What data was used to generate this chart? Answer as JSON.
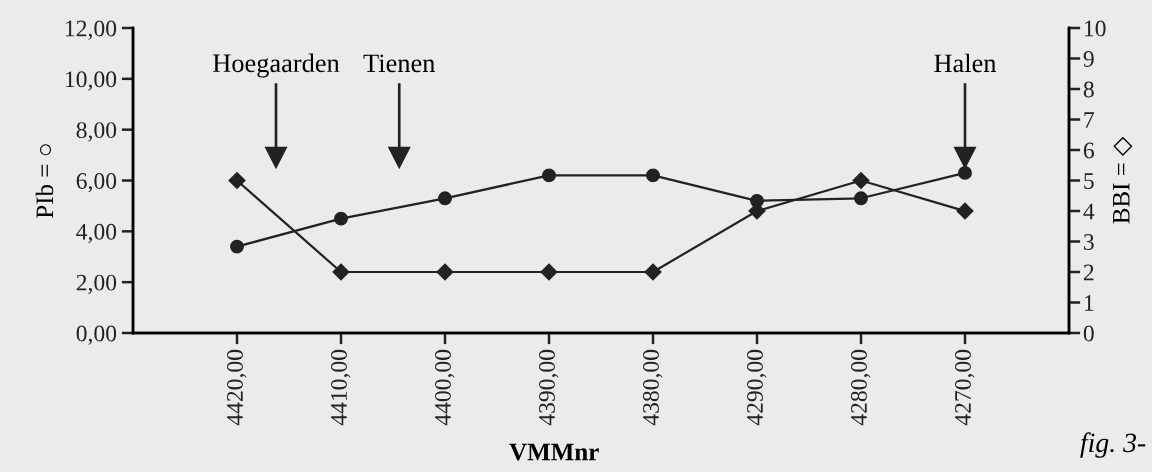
{
  "chart_data": {
    "type": "line",
    "xlabel": "VMMnr",
    "ylabel": "PIb = ○",
    "y2label": "BBI = ◇",
    "categories": [
      "4420,00",
      "4410,00",
      "4400,00",
      "4390,00",
      "4380,00",
      "4290,00",
      "4280,00",
      "4270,00"
    ],
    "series": [
      {
        "color": "#222222",
        "marker": "circle",
        "values": [
          3.4,
          4.5,
          5.3,
          6.2,
          6.2,
          5.2,
          5.3,
          6.3
        ]
      },
      {
        "color": "#222222",
        "marker": "diamond",
        "axis": "y2",
        "values": [
          5,
          2,
          2,
          2,
          2,
          4,
          5,
          4
        ]
      }
    ],
    "ylim": [
      0,
      12
    ],
    "yticks": [
      {
        "value": 0,
        "label": "0,00"
      },
      {
        "value": 2,
        "label": "2,00"
      },
      {
        "value": 4,
        "label": "4,00"
      },
      {
        "value": 6,
        "label": "6,00"
      },
      {
        "value": 8,
        "label": "8,00"
      },
      {
        "value": 10,
        "label": "10,00"
      },
      {
        "value": 12,
        "label": "12,00"
      }
    ],
    "y2lim": [
      0,
      10
    ],
    "y2ticks": [
      0,
      1,
      2,
      3,
      4,
      5,
      6,
      7,
      8,
      9,
      10
    ],
    "line_style": "solid",
    "annotations": [
      "Hoegaarden",
      "Tienen",
      "Halen",
      "fig. 3-"
    ]
  }
}
